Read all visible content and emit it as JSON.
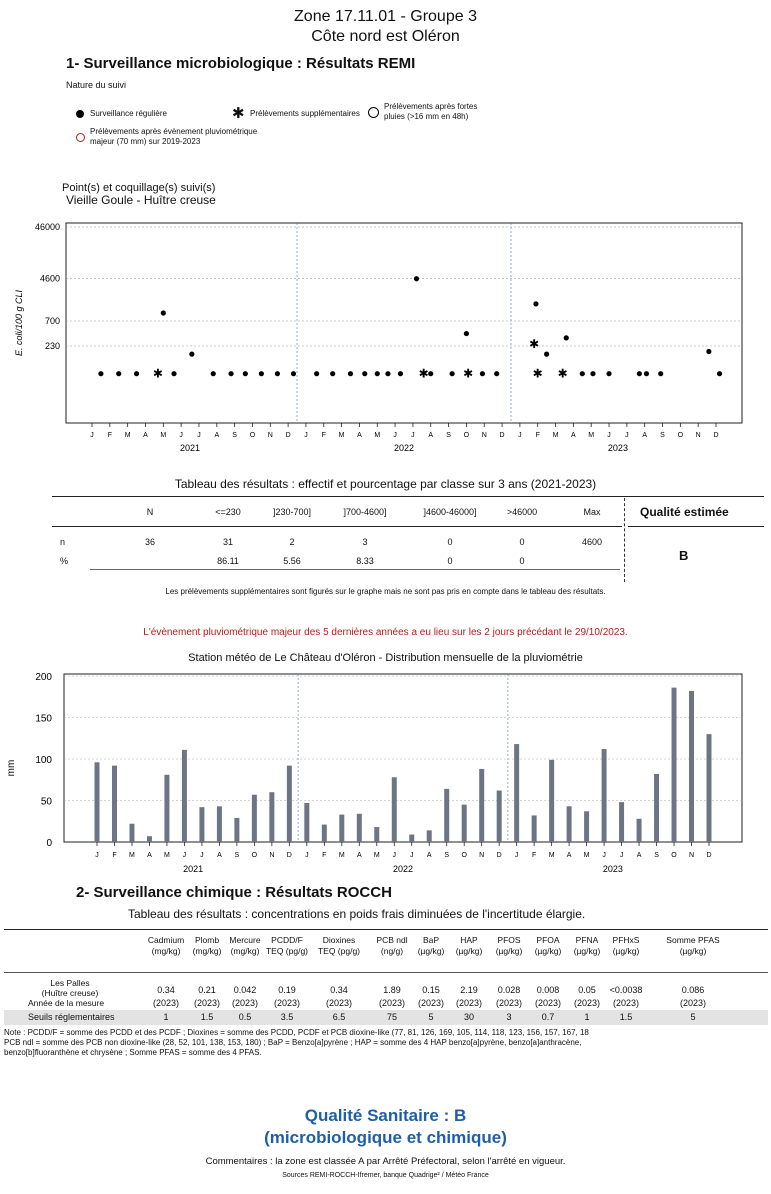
{
  "header": {
    "zone": "Zone 17.11.01 - Groupe 3",
    "area": "Côte nord est Oléron",
    "section1": "1- Surveillance microbiologique : Résultats REMI",
    "nature": "Nature du suivi"
  },
  "legend": {
    "regular": "Surveillance régulière",
    "extra": "Prélèvements supplémentaires",
    "after_rain_1": "Prélèvements après fortes",
    "after_rain_2": "pluies (>16 mm en 48h)",
    "major_1": "Prélèvements après évènement pluviométrique",
    "major_2": "majeur (70 mm) sur 2019-2023"
  },
  "points": {
    "label": "Point(s) et coquillage(s) suivi(s)",
    "value": "Vieille Goule - Huître creuse"
  },
  "months": [
    "J",
    "F",
    "M",
    "A",
    "M",
    "J",
    "J",
    "A",
    "S",
    "O",
    "N",
    "D",
    "J",
    "F",
    "M",
    "A",
    "M",
    "J",
    "J",
    "A",
    "S",
    "O",
    "N",
    "D",
    "J",
    "F",
    "M",
    "A",
    "M",
    "J",
    "J",
    "A",
    "S",
    "O",
    "N",
    "D"
  ],
  "years": [
    "2021",
    "2022",
    "2023"
  ],
  "chart_data": [
    {
      "type": "scatter",
      "ylabel": "E. coli/100 g CLI",
      "y_ticks": [
        "46000",
        "4600",
        "700",
        "230"
      ],
      "x_axis": "months Jan 2021 - Dec 2023",
      "regular": [
        {
          "x": 0.5,
          "y": 67
        },
        {
          "x": 1.5,
          "y": 67
        },
        {
          "x": 2.5,
          "y": 67
        },
        {
          "x": 4.0,
          "y": 1000
        },
        {
          "x": 4.6,
          "y": 67
        },
        {
          "x": 5.6,
          "y": 160
        },
        {
          "x": 6.8,
          "y": 67
        },
        {
          "x": 7.8,
          "y": 67
        },
        {
          "x": 8.6,
          "y": 67
        },
        {
          "x": 9.5,
          "y": 67
        },
        {
          "x": 10.4,
          "y": 67
        },
        {
          "x": 11.3,
          "y": 67
        },
        {
          "x": 12.6,
          "y": 67
        },
        {
          "x": 13.5,
          "y": 67
        },
        {
          "x": 14.5,
          "y": 67
        },
        {
          "x": 15.3,
          "y": 67
        },
        {
          "x": 16.0,
          "y": 67
        },
        {
          "x": 16.6,
          "y": 67
        },
        {
          "x": 17.3,
          "y": 67
        },
        {
          "x": 18.2,
          "y": 4600
        },
        {
          "x": 19.0,
          "y": 67
        },
        {
          "x": 20.2,
          "y": 67
        },
        {
          "x": 21.0,
          "y": 400
        },
        {
          "x": 21.9,
          "y": 67
        },
        {
          "x": 22.7,
          "y": 67
        },
        {
          "x": 24.9,
          "y": 1500
        },
        {
          "x": 25.5,
          "y": 160
        },
        {
          "x": 26.6,
          "y": 330
        },
        {
          "x": 27.5,
          "y": 67
        },
        {
          "x": 28.1,
          "y": 67
        },
        {
          "x": 29.0,
          "y": 67
        },
        {
          "x": 30.7,
          "y": 67
        },
        {
          "x": 31.1,
          "y": 67
        },
        {
          "x": 31.9,
          "y": 67
        },
        {
          "x": 34.6,
          "y": 180
        },
        {
          "x": 35.2,
          "y": 67
        }
      ],
      "extra": [
        {
          "x": 3.7,
          "y": 67
        },
        {
          "x": 18.6,
          "y": 67
        },
        {
          "x": 21.1,
          "y": 67
        },
        {
          "x": 24.8,
          "y": 250
        },
        {
          "x": 25.0,
          "y": 67
        },
        {
          "x": 26.4,
          "y": 67
        }
      ]
    },
    {
      "type": "bar",
      "title": "Station météo de  Le Château d'Oléron  - Distribution mensuelle de la pluviométrie",
      "ylabel": "mm",
      "ylim": [
        0,
        200
      ],
      "y_ticks": [
        0,
        50,
        100,
        150,
        200
      ],
      "categories": [
        "J",
        "F",
        "M",
        "A",
        "M",
        "J",
        "J",
        "A",
        "S",
        "O",
        "N",
        "D",
        "J",
        "F",
        "M",
        "A",
        "M",
        "J",
        "J",
        "A",
        "S",
        "O",
        "N",
        "D",
        "J",
        "F",
        "M",
        "A",
        "M",
        "J",
        "J",
        "A",
        "S",
        "O",
        "N",
        "D"
      ],
      "values": [
        96,
        92,
        22,
        7,
        81,
        111,
        42,
        43,
        29,
        57,
        60,
        92,
        47,
        21,
        33,
        34,
        18,
        78,
        9,
        14,
        64,
        45,
        88,
        62,
        118,
        32,
        99,
        43,
        37,
        112,
        48,
        28,
        82,
        186,
        182,
        130
      ]
    }
  ],
  "results_table": {
    "caption": "Tableau des résultats : effectif et pourcentage par classe sur 3 ans (2021-2023)",
    "headers": [
      "N",
      "<=230",
      "]230-700]",
      "]700-4600]",
      "]4600-46000]",
      ">46000",
      "Max"
    ],
    "quality_header": "Qualité estimée",
    "row_n": {
      "label": "n",
      "values": [
        "36",
        "31",
        "2",
        "3",
        "0",
        "0",
        "4600"
      ]
    },
    "row_pct": {
      "label": "%",
      "values": [
        "",
        "86.11",
        "5.56",
        "8.33",
        "0",
        "0",
        ""
      ]
    },
    "quality": "B",
    "note": "Les prélèvements supplémentaires sont figurés sur le graphe mais ne sont pas pris en compte dans le tableau des résultats."
  },
  "event_note": "L'évènement pluviométrique majeur des 5 dernières années a eu lieu sur les 2 jours précédant le 29/10/2023.",
  "section2": {
    "title": "2- Surveillance chimique : Résultats ROCCH",
    "caption": "Tableau des résultats : concentrations en poids frais diminuées de l'incertitude élargie.",
    "columns": [
      [
        "Cadmium",
        "(mg/kg)"
      ],
      [
        "Plomb",
        "(mg/kg)"
      ],
      [
        "Mercure",
        "(mg/kg)"
      ],
      [
        "PCDD/F",
        "TEQ (pg/g)"
      ],
      [
        "Dioxines",
        "TEQ (pg/g)"
      ],
      [
        "PCB ndl",
        "(ng/g)"
      ],
      [
        "BaP",
        "(µg/kg)"
      ],
      [
        "HAP",
        "(µg/kg)"
      ],
      [
        "PFOS",
        "(µg/kg)"
      ],
      [
        "PFOA",
        "(µg/kg)"
      ],
      [
        "PFNA",
        "(µg/kg)"
      ],
      [
        "PFHxS",
        "(µg/kg)"
      ],
      [
        "Somme PFAS",
        "(µg/kg)"
      ]
    ],
    "site_1": "Les Palles",
    "site_2": "(Huître creuse)",
    "year_label": "Année de la mesure",
    "values": [
      "0.34",
      "0.21",
      "0.042",
      "0.19",
      "0.34",
      "1.89",
      "0.15",
      "2.19",
      "0.028",
      "0.008",
      "0.05",
      "<0.0038",
      "0.086"
    ],
    "years": [
      "(2023)",
      "(2023)",
      "(2023)",
      "(2023)",
      "(2023)",
      "(2023)",
      "(2023)",
      "(2023)",
      "(2023)",
      "(2023)",
      "(2023)",
      "(2023)",
      "(2023)"
    ],
    "threshold_label": "Seuils réglementaires",
    "thresholds": [
      "1",
      "1.5",
      "0.5",
      "3.5",
      "6.5",
      "75",
      "5",
      "30",
      "3",
      "0.7",
      "1",
      "1.5",
      "5"
    ],
    "note_1": "Note : PCDD/F = somme des PCDD et des PCDF ; Dioxines = somme des PCDD, PCDF et PCB dioxine-like (77, 81, 126, 169, 105, 114, 118, 123, 156, 157, 167, 18",
    "note_2": "PCB ndl = somme des PCB non dioxine-like (28, 52, 101, 138, 153, 180) ; BaP = Benzo[a]pyrène ; HAP = somme des 4 HAP benzo[a]pyrène, benzo[a]anthracène,",
    "note_3": "benzo[b]fluoranthène et chrysène ; Somme PFAS = somme des 4 PFAS."
  },
  "footer": {
    "quality_1": "Qualité Sanitaire : B",
    "quality_2": "(microbiologique et chimique)",
    "comment": "Commentaires : la zone est classée A par Arrêté Préfectoral, selon l'arrêté en vigueur.",
    "sources": "Sources REMI-ROCCH-Ifremer, banque Quadrige² / Météo France"
  },
  "colors": {
    "bar": "#6d7585",
    "red": "#b0201a",
    "blue": "#1f5fa8"
  }
}
